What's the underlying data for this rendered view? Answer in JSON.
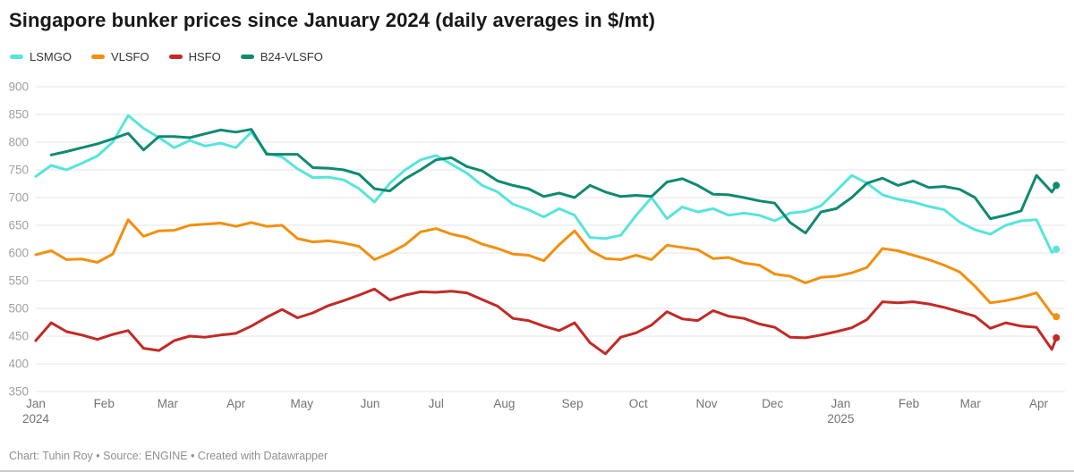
{
  "title": "Singapore bunker prices since January 2024 (daily averages in $/mt)",
  "legend": {
    "items": [
      {
        "label": "LSMGO",
        "color": "#57e4dc"
      },
      {
        "label": "VLSFO",
        "color": "#f1900e"
      },
      {
        "label": "HSFO",
        "color": "#c22a26"
      },
      {
        "label": "B24-VLSFO",
        "color": "#0f8a72"
      }
    ]
  },
  "footer": {
    "text": "Chart: Tuhin Roy • Source: ENGINE • Created with Datawrapper"
  },
  "chart_data": {
    "type": "line",
    "title": "Singapore bunker prices since January 2024 (daily averages in $/mt)",
    "ylabel": "$/mt",
    "x_domain": [
      "2024-01-01",
      "2025-04-13"
    ],
    "ylim": [
      350,
      900
    ],
    "yticks": [
      350,
      400,
      450,
      500,
      550,
      600,
      650,
      700,
      750,
      800,
      850,
      900
    ],
    "grid": "horizontal",
    "legend_position": "top-left",
    "colors": {
      "grid": "#e4e4e4",
      "y_tick_label": "#a0a0a0",
      "x_tick_label": "#737373"
    },
    "x": [
      "2024-01-01",
      "2024-01-08",
      "2024-01-15",
      "2024-01-22",
      "2024-01-29",
      "2024-02-05",
      "2024-02-12",
      "2024-02-19",
      "2024-02-26",
      "2024-03-04",
      "2024-03-11",
      "2024-03-18",
      "2024-03-25",
      "2024-04-01",
      "2024-04-08",
      "2024-04-15",
      "2024-04-22",
      "2024-04-29",
      "2024-05-06",
      "2024-05-13",
      "2024-05-20",
      "2024-05-27",
      "2024-06-03",
      "2024-06-10",
      "2024-06-17",
      "2024-06-24",
      "2024-07-01",
      "2024-07-08",
      "2024-07-15",
      "2024-07-22",
      "2024-07-29",
      "2024-08-05",
      "2024-08-12",
      "2024-08-19",
      "2024-08-26",
      "2024-09-02",
      "2024-09-09",
      "2024-09-16",
      "2024-09-23",
      "2024-09-30",
      "2024-10-07",
      "2024-10-14",
      "2024-10-21",
      "2024-10-28",
      "2024-11-04",
      "2024-11-11",
      "2024-11-18",
      "2024-11-25",
      "2024-12-02",
      "2024-12-09",
      "2024-12-16",
      "2024-12-23",
      "2024-12-30",
      "2025-01-06",
      "2025-01-13",
      "2025-01-20",
      "2025-01-27",
      "2025-02-03",
      "2025-02-10",
      "2025-02-17",
      "2025-02-24",
      "2025-03-03",
      "2025-03-10",
      "2025-03-17",
      "2025-03-24",
      "2025-03-31",
      "2025-04-07",
      "2025-04-09"
    ],
    "series": [
      {
        "name": "LSMGO",
        "color": "#57e4dc",
        "values": [
          738,
          758,
          750,
          762,
          775,
          800,
          848,
          825,
          808,
          790,
          803,
          793,
          798,
          790,
          818,
          780,
          773,
          752,
          736,
          737,
          732,
          716,
          692,
          726,
          750,
          768,
          776,
          760,
          744,
          722,
          710,
          688,
          678,
          665,
          680,
          668,
          628,
          626,
          632,
          668,
          700,
          662,
          683,
          674,
          680,
          668,
          672,
          668,
          658,
          672,
          675,
          685,
          712,
          740,
          726,
          705,
          697,
          692,
          684,
          678,
          656,
          642,
          634,
          650,
          658,
          660,
          601,
          607
        ]
      },
      {
        "name": "VLSFO",
        "color": "#f1900e",
        "values": [
          597,
          604,
          588,
          589,
          583,
          598,
          660,
          630,
          640,
          641,
          650,
          652,
          654,
          648,
          655,
          648,
          650,
          626,
          620,
          622,
          618,
          612,
          588,
          600,
          615,
          638,
          644,
          634,
          628,
          616,
          608,
          598,
          596,
          586,
          615,
          640,
          605,
          590,
          588,
          596,
          588,
          614,
          610,
          606,
          590,
          592,
          582,
          578,
          562,
          558,
          546,
          556,
          558,
          564,
          574,
          608,
          604,
          596,
          588,
          578,
          566,
          540,
          510,
          514,
          520,
          528,
          490,
          485
        ]
      },
      {
        "name": "HSFO",
        "color": "#c22a26",
        "values": [
          442,
          474,
          458,
          452,
          444,
          453,
          460,
          428,
          424,
          442,
          450,
          448,
          452,
          455,
          468,
          484,
          498,
          483,
          492,
          505,
          514,
          524,
          535,
          515,
          524,
          530,
          529,
          531,
          528,
          516,
          504,
          482,
          478,
          468,
          460,
          474,
          438,
          418,
          448,
          456,
          470,
          494,
          481,
          478,
          496,
          486,
          482,
          472,
          466,
          448,
          447,
          452,
          458,
          465,
          480,
          512,
          510,
          512,
          508,
          502,
          494,
          486,
          464,
          474,
          468,
          466,
          426,
          447
        ]
      },
      {
        "name": "B24-VLSFO",
        "color": "#0f8a72",
        "values": [
          null,
          777,
          783,
          790,
          797,
          806,
          816,
          786,
          810,
          810,
          808,
          815,
          822,
          818,
          823,
          778,
          778,
          778,
          754,
          753,
          750,
          742,
          716,
          712,
          734,
          750,
          768,
          772,
          756,
          748,
          730,
          722,
          716,
          702,
          708,
          700,
          722,
          710,
          702,
          704,
          702,
          728,
          734,
          722,
          706,
          705,
          700,
          694,
          690,
          655,
          636,
          674,
          680,
          700,
          726,
          735,
          722,
          730,
          718,
          720,
          715,
          700,
          662,
          668,
          676,
          740,
          710,
          722
        ]
      }
    ],
    "xticks": [
      {
        "date": "2024-01-01",
        "label": "Jan",
        "sublabel": "2024"
      },
      {
        "date": "2024-02-01",
        "label": "Feb"
      },
      {
        "date": "2024-03-01",
        "label": "Mar"
      },
      {
        "date": "2024-04-01",
        "label": "Apr"
      },
      {
        "date": "2024-05-01",
        "label": "May"
      },
      {
        "date": "2024-06-01",
        "label": "Jun"
      },
      {
        "date": "2024-07-01",
        "label": "Jul"
      },
      {
        "date": "2024-08-01",
        "label": "Aug"
      },
      {
        "date": "2024-09-01",
        "label": "Sep"
      },
      {
        "date": "2024-10-01",
        "label": "Oct"
      },
      {
        "date": "2024-11-01",
        "label": "Nov"
      },
      {
        "date": "2024-12-01",
        "label": "Dec"
      },
      {
        "date": "2025-01-01",
        "label": "Jan",
        "sublabel": "2025"
      },
      {
        "date": "2025-02-01",
        "label": "Feb"
      },
      {
        "date": "2025-03-01",
        "label": "Mar"
      },
      {
        "date": "2025-04-01",
        "label": "Apr"
      }
    ]
  }
}
